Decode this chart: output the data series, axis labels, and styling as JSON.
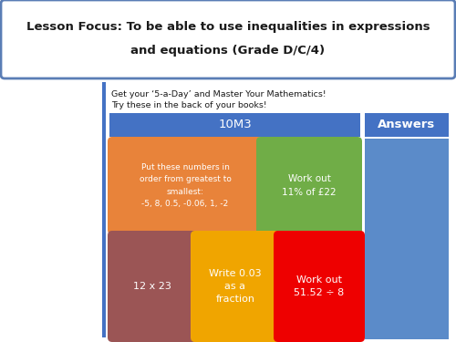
{
  "title_line1": "Lesson Focus: To be able to use inequalities in expressions",
  "title_line2": "and equations (Grade D/C/4)",
  "subtitle1": "Get your ‘5-a-Day’ and Master Your Mathematics!",
  "subtitle2": "Try these in the back of your books!",
  "header_text": "10M3",
  "answers_text": "Answers",
  "cell1_text": "Put these numbers in\norder from greatest to\nsmallest:\n-5, 8, 0.5, -0.06, 1, -2",
  "cell2_text": "Work out\n11% of £22",
  "cell3_text": "12 x 23",
  "cell4_text": "Write 0.03\nas a\nfraction",
  "cell5_text": "Work out\n51.52 ÷ 8",
  "bg_color": "#ffffff",
  "title_border_color": "#5a7db5",
  "header_color": "#4472c4",
  "answers_header_color": "#4472c4",
  "answers_body_color": "#5b8bc9",
  "cell1_color": "#e8833a",
  "cell2_color": "#70ad47",
  "cell3_color": "#9b5555",
  "cell4_color": "#f0a500",
  "cell5_color": "#ee0000",
  "text_color_white": "#ffffff",
  "text_color_dark": "#1a1a1a",
  "side_bar_color": "#4472c4",
  "figsize": [
    5.0,
    3.75
  ],
  "dpi": 100
}
